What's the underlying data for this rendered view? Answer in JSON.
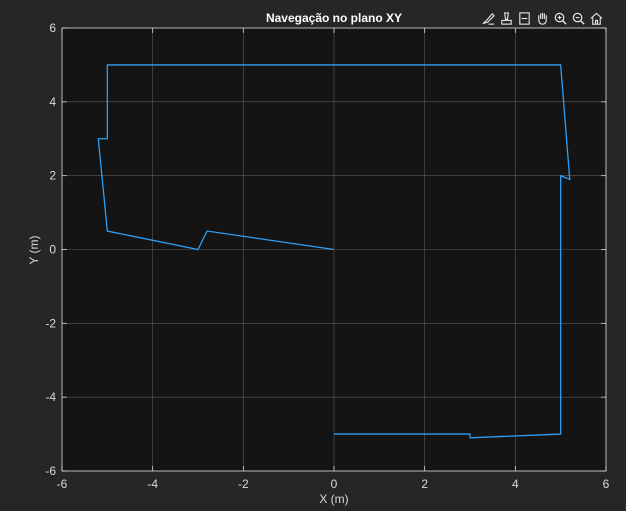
{
  "figure": {
    "background_color": "#262626",
    "axes_background_color": "#141414"
  },
  "toolbar": {
    "items": [
      {
        "icon": "brush-icon",
        "action": "brush"
      },
      {
        "icon": "data-tips-icon",
        "action": "data-tips"
      },
      {
        "icon": "legend-icon",
        "action": "legend"
      },
      {
        "icon": "pan-icon",
        "action": "pan"
      },
      {
        "icon": "zoom-in-icon",
        "action": "zoom-in"
      },
      {
        "icon": "zoom-out-icon",
        "action": "zoom-out"
      },
      {
        "icon": "home-icon",
        "action": "restore-view"
      }
    ]
  },
  "chart_data": {
    "type": "line",
    "title": "Navegação no plano XY",
    "xlabel": "X (m)",
    "ylabel": "Y (m)",
    "xlim": [
      -6,
      6
    ],
    "ylim": [
      -6,
      6
    ],
    "xticks": [
      -6,
      -4,
      -2,
      0,
      2,
      4,
      6
    ],
    "yticks": [
      -6,
      -4,
      -2,
      0,
      2,
      4,
      6
    ],
    "xtick_labels": [
      "-6",
      "-4",
      "-2",
      "0",
      "2",
      "4",
      "6"
    ],
    "ytick_labels": [
      "-6",
      "-4",
      "-2",
      "0",
      "2",
      "4",
      "6"
    ],
    "grid": true,
    "line_color": "#2e9ef4",
    "grid_color": "#5a5a5a",
    "axis_color": "#d9d9d9",
    "series": [
      {
        "x": [
          0,
          3,
          3,
          5,
          5,
          5.2,
          5,
          5,
          -5,
          -5,
          -5.2,
          -5,
          -3,
          -2.8,
          0
        ],
        "y": [
          -5,
          -5,
          -5.1,
          -5,
          2,
          1.9,
          5,
          5,
          5,
          3,
          3,
          0.5,
          0,
          0.5,
          0
        ]
      }
    ]
  }
}
